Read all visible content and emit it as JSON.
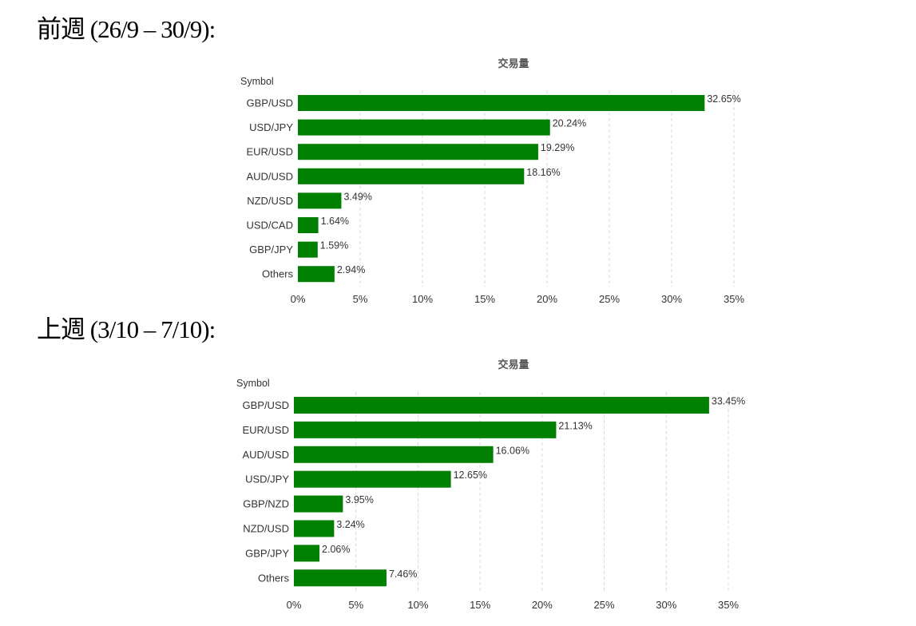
{
  "sections": [
    {
      "heading": "前週 (26/9 – 30/9):"
    },
    {
      "heading": "上週 (3/10 – 7/10):"
    }
  ],
  "chart_data": [
    {
      "type": "bar",
      "orientation": "horizontal",
      "title": "交易量",
      "ylabel": "Symbol",
      "categories": [
        "GBP/USD",
        "USD/JPY",
        "EUR/USD",
        "AUD/USD",
        "NZD/USD",
        "USD/CAD",
        "GBP/JPY",
        "Others"
      ],
      "values": [
        32.65,
        20.24,
        19.29,
        18.16,
        3.49,
        1.64,
        1.59,
        2.94
      ],
      "value_labels": [
        "32.65%",
        "20.24%",
        "19.29%",
        "18.16%",
        "3.49%",
        "1.64%",
        "1.59%",
        "2.94%"
      ],
      "xlim": [
        0,
        35
      ],
      "xticks": [
        0,
        5,
        10,
        15,
        20,
        25,
        30,
        35
      ],
      "xtick_labels": [
        "0%",
        "5%",
        "10%",
        "15%",
        "20%",
        "25%",
        "30%",
        "35%"
      ],
      "grid": true,
      "bar_color": "#008000"
    },
    {
      "type": "bar",
      "orientation": "horizontal",
      "title": "交易量",
      "ylabel": "Symbol",
      "categories": [
        "GBP/USD",
        "EUR/USD",
        "AUD/USD",
        "USD/JPY",
        "GBP/NZD",
        "NZD/USD",
        "GBP/JPY",
        "Others"
      ],
      "values": [
        33.45,
        21.13,
        16.06,
        12.65,
        3.95,
        3.24,
        2.06,
        7.46
      ],
      "value_labels": [
        "33.45%",
        "21.13%",
        "16.06%",
        "12.65%",
        "3.95%",
        "3.24%",
        "2.06%",
        "7.46%"
      ],
      "xlim": [
        0,
        35
      ],
      "xticks": [
        0,
        5,
        10,
        15,
        20,
        25,
        30,
        35
      ],
      "xtick_labels": [
        "0%",
        "5%",
        "10%",
        "15%",
        "20%",
        "25%",
        "30%",
        "35%"
      ],
      "grid": true,
      "bar_color": "#008000"
    }
  ]
}
